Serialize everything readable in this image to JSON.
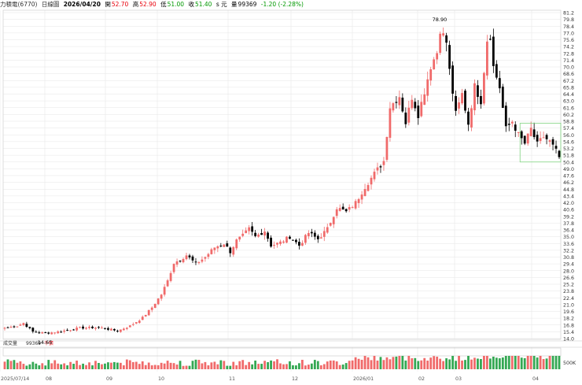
{
  "header": {
    "stock": "力積電(6770)",
    "period": "日線圖",
    "date": "2026/04/20",
    "open_label": "開",
    "open": "52.70",
    "high_label": "高",
    "high": "52.90",
    "low_label": "低",
    "low": "51.00",
    "close_label": "收",
    "close": "51.40",
    "unit": "s 元",
    "volume_label": "量",
    "volume": "99369",
    "change": "-1.20 (-2.28%)"
  },
  "volume_panel": {
    "label": "成交量",
    "value": "99369",
    "unit_mark": "千張",
    "axis_label": "500K"
  },
  "colors": {
    "up": "#f06a6a",
    "down": "#000000",
    "vol_up": "#f06a6a",
    "vol_down": "#34a853",
    "header_up": "#e8000b",
    "header_down": "#009900",
    "grid": "#e6e6e6",
    "box": "#7fd37f"
  },
  "chart_data": {
    "type": "candlestick",
    "x_tick_labels": [
      "2025/07/14",
      "08",
      "09",
      "10",
      "11",
      "12",
      "2026/01",
      "02",
      "03",
      "04"
    ],
    "y_tick_labels": [
      "81.2",
      "79.8",
      "78.4",
      "77.0",
      "75.6",
      "74.2",
      "72.8",
      "71.4",
      "70.0",
      "68.6",
      "67.2",
      "65.8",
      "64.4",
      "63.0",
      "61.6",
      "60.2",
      "58.8",
      "57.4",
      "56.0",
      "54.6",
      "53.2",
      "51.8",
      "50.4",
      "49.0",
      "47.6",
      "46.2",
      "44.8",
      "43.4",
      "42.0",
      "40.6",
      "39.2",
      "37.8",
      "36.4",
      "35.0",
      "33.6",
      "32.2",
      "30.8",
      "29.4",
      "28.0",
      "26.6",
      "25.2",
      "23.8",
      "22.4",
      "21.0",
      "19.6",
      "18.2",
      "16.8",
      "15.4",
      "14.0"
    ],
    "ylim": [
      14.0,
      81.2
    ],
    "annotations": [
      {
        "text": "78.90",
        "date_index": 139,
        "value": 78.9
      },
      {
        "text": "14.65",
        "date_index": 13,
        "value": 14.65
      }
    ],
    "highlight_box": {
      "from_index": 165,
      "to_index": 177,
      "low": 50.4,
      "high": 58.4
    },
    "close_anchors": [
      [
        0,
        16.2
      ],
      [
        4,
        16.6
      ],
      [
        6,
        17.2
      ],
      [
        9,
        15.4
      ],
      [
        13,
        15.1
      ],
      [
        18,
        15.5
      ],
      [
        24,
        16.2
      ],
      [
        30,
        16.3
      ],
      [
        36,
        15.6
      ],
      [
        40,
        16.6
      ],
      [
        44,
        18.3
      ],
      [
        47,
        20.4
      ],
      [
        50,
        23.1
      ],
      [
        52,
        25.9
      ],
      [
        54,
        29.6
      ],
      [
        56,
        30.3
      ],
      [
        58,
        31.2
      ],
      [
        61,
        29.4
      ],
      [
        64,
        30.8
      ],
      [
        67,
        32.8
      ],
      [
        70,
        33.6
      ],
      [
        72,
        31.9
      ],
      [
        74,
        34.2
      ],
      [
        76,
        35.2
      ],
      [
        78,
        36.6
      ],
      [
        80,
        35.0
      ],
      [
        83,
        36.2
      ],
      [
        85,
        33.2
      ],
      [
        88,
        33.8
      ],
      [
        91,
        35.0
      ],
      [
        94,
        33.2
      ],
      [
        97,
        35.8
      ],
      [
        100,
        34.5
      ],
      [
        103,
        36.6
      ],
      [
        106,
        41.0
      ],
      [
        109,
        40.1
      ],
      [
        112,
        42.0
      ],
      [
        115,
        45.3
      ],
      [
        118,
        48.0
      ],
      [
        121,
        50.6
      ],
      [
        123,
        61.8
      ],
      [
        126,
        64.0
      ],
      [
        128,
        58.5
      ],
      [
        130,
        63.8
      ],
      [
        132,
        60.2
      ],
      [
        134,
        65.0
      ],
      [
        136,
        70.2
      ],
      [
        138,
        73.0
      ],
      [
        139,
        77.8
      ],
      [
        141,
        75.1
      ],
      [
        142,
        69.2
      ],
      [
        144,
        60.3
      ],
      [
        146,
        64.4
      ],
      [
        148,
        58.3
      ],
      [
        150,
        66.0
      ],
      [
        152,
        63.0
      ],
      [
        154,
        75.6
      ],
      [
        155,
        76.5
      ],
      [
        156,
        70.0
      ],
      [
        158,
        65.8
      ],
      [
        160,
        57.2
      ],
      [
        162,
        58.8
      ],
      [
        164,
        56.0
      ],
      [
        166,
        54.2
      ],
      [
        168,
        57.2
      ],
      [
        170,
        54.0
      ],
      [
        172,
        55.6
      ],
      [
        174,
        54.6
      ],
      [
        176,
        52.6
      ],
      [
        177,
        51.4
      ]
    ],
    "last_bar": {
      "date": "2026/04/20",
      "open": 52.7,
      "high": 52.9,
      "low": 51.0,
      "close": 51.4,
      "volume": 99369
    }
  }
}
